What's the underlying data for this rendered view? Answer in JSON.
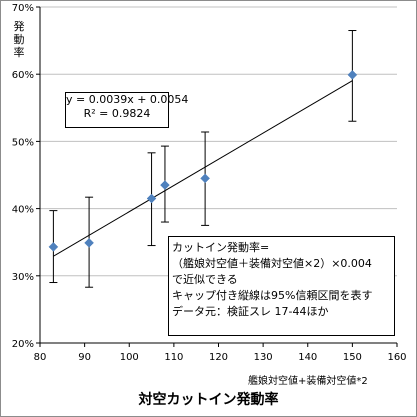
{
  "chart_data": {
    "type": "scatter",
    "title": "対空カットイン発動率",
    "xlabel": "艦娘対空値+装備対空値*2",
    "ylabel": "発動率",
    "xlim": [
      80,
      160
    ],
    "ylim": [
      0.2,
      0.7
    ],
    "xticks": [
      "80",
      "90",
      "100",
      "110",
      "120",
      "130",
      "140",
      "150",
      "160"
    ],
    "yticks": [
      "20%",
      "30%",
      "40%",
      "50%",
      "60%",
      "70%"
    ],
    "grid": true,
    "series": [
      {
        "points": [
          {
            "x": 83,
            "y": 0.343,
            "err_low": 0.29,
            "err_high": 0.397
          },
          {
            "x": 91,
            "y": 0.349,
            "err_low": 0.283,
            "err_high": 0.417
          },
          {
            "x": 105,
            "y": 0.415,
            "err_low": 0.345,
            "err_high": 0.483
          },
          {
            "x": 108,
            "y": 0.435,
            "err_low": 0.38,
            "err_high": 0.493
          },
          {
            "x": 117,
            "y": 0.445,
            "err_low": 0.375,
            "err_high": 0.514
          },
          {
            "x": 150,
            "y": 0.599,
            "err_low": 0.53,
            "err_high": 0.665
          }
        ]
      }
    ],
    "trendline": {
      "slope": 0.0039,
      "intercept": 0.0054,
      "x_range": [
        83,
        150
      ]
    },
    "equation_lines": [
      "y = 0.0039x + 0.0054",
      "R² = 0.9824"
    ],
    "note_lines": [
      "カットイン発動率=",
      "（艦娘対空値＋装備対空値×2）×0.004",
      "で近似できる",
      "キャップ付き縦線は95%信頼区間を表す",
      "データ元：検証スレ 17-44ほか"
    ],
    "colors": {
      "marker": "#4f81bd",
      "line": "#000000",
      "grid": "#c0c0c0"
    }
  }
}
